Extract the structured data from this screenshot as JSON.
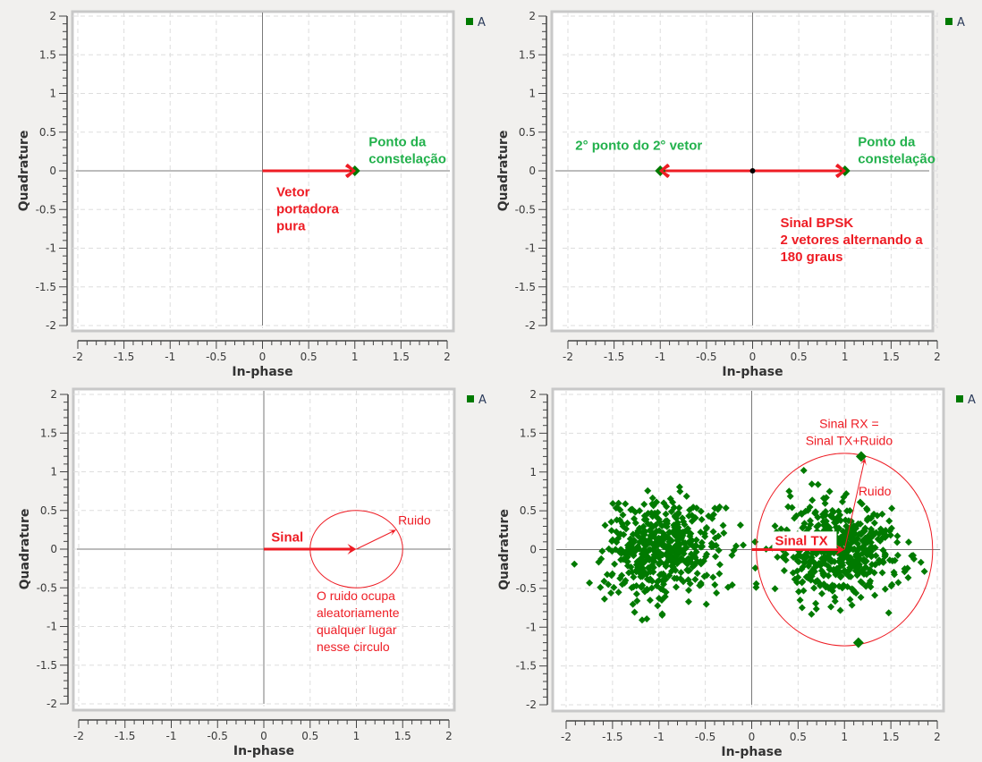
{
  "colors": {
    "background": "#f1f0ee",
    "plot_bg": "#ffffff",
    "grid": "#dddddd",
    "frame": "#c8c8c8",
    "axis_line": "#7a7a7a",
    "point": "#007a00",
    "vector": "#ee1c24",
    "label_green": "#22b14c",
    "label_red": "#ee1c24"
  },
  "chart_data": [
    {
      "id": "top-left",
      "type": "scatter",
      "title": "",
      "xlabel": "In-phase",
      "ylabel": "Quadrature",
      "xlim": [
        -2,
        2
      ],
      "ylim": [
        -2,
        2
      ],
      "xticks": [
        "-2",
        "-1.5",
        "-1",
        "-0.5",
        "0",
        "0.5",
        "1",
        "1.5",
        "2"
      ],
      "yticks": [
        "2",
        "1.5",
        "1",
        "0.5",
        "0",
        "-0.5",
        "-1",
        "-1.5",
        "-2"
      ],
      "grid": true,
      "legend": {
        "position": "top-right",
        "entries": [
          "A"
        ]
      },
      "points": [
        [
          1,
          0
        ]
      ],
      "vectors": [
        {
          "from": [
            0,
            0
          ],
          "to": [
            1,
            0
          ]
        }
      ],
      "annotations": [
        {
          "text": [
            "Ponto da",
            "constelação"
          ],
          "color": "green",
          "at": [
            1.15,
            0.32
          ]
        },
        {
          "text": [
            "Vetor",
            "portadora",
            "pura"
          ],
          "color": "red",
          "at": [
            0.15,
            -0.33
          ]
        }
      ]
    },
    {
      "id": "top-right",
      "type": "scatter",
      "title": "",
      "xlabel": "In-phase",
      "ylabel": "Quadrature",
      "xlim": [
        -2,
        2
      ],
      "ylim": [
        -2,
        2
      ],
      "xticks": [
        "-2",
        "-1.5",
        "-1",
        "-0.5",
        "0",
        "0.5",
        "1",
        "1.5",
        "2"
      ],
      "yticks": [
        "2",
        "1.5",
        "1",
        "0.5",
        "0",
        "-0.5",
        "-1",
        "-1.5",
        "-2"
      ],
      "grid": true,
      "legend": {
        "position": "top-right",
        "entries": [
          "A"
        ]
      },
      "points": [
        [
          1,
          0
        ],
        [
          -1,
          0
        ]
      ],
      "origin_dot": true,
      "vectors": [
        {
          "from": [
            0,
            0
          ],
          "to": [
            1,
            0
          ]
        },
        {
          "from": [
            0,
            0
          ],
          "to": [
            -1,
            0
          ]
        }
      ],
      "annotations": [
        {
          "text": [
            "2° ponto do 2° vetor"
          ],
          "color": "green",
          "at": [
            -1.92,
            0.27
          ]
        },
        {
          "text": [
            "Ponto da",
            "constelação"
          ],
          "color": "green",
          "at": [
            1.14,
            0.32
          ]
        },
        {
          "text": [
            "Sinal BPSK",
            "2 vetores alternando a",
            "180 graus"
          ],
          "color": "red",
          "at": [
            0.3,
            -0.73
          ]
        }
      ]
    },
    {
      "id": "bottom-left",
      "type": "scatter",
      "title": "",
      "xlabel": "In-phase",
      "ylabel": "Quadrature",
      "xlim": [
        -2,
        2
      ],
      "ylim": [
        -2,
        2
      ],
      "xticks": [
        "-2",
        "-1.5",
        "-1",
        "-0.5",
        "0",
        "0.5",
        "1",
        "1.5",
        "2"
      ],
      "yticks": [
        "2",
        "1.5",
        "1",
        "0.5",
        "0",
        "-0.5",
        "-1",
        "-1.5",
        "-2"
      ],
      "grid": true,
      "legend": {
        "position": "top-right",
        "entries": [
          "A"
        ]
      },
      "points": [],
      "vectors": [
        {
          "from": [
            0,
            0
          ],
          "to": [
            1,
            0
          ],
          "weight": "bold"
        },
        {
          "from": [
            1,
            0
          ],
          "to": [
            1.43,
            0.25
          ],
          "weight": "thin"
        }
      ],
      "noise_circle": {
        "center": [
          1,
          0
        ],
        "radius_x": 0.5,
        "radius_y": 0.5
      },
      "annotations": [
        {
          "text": [
            "Sinal"
          ],
          "color": "red",
          "bold": true,
          "at": [
            0.08,
            0.1
          ]
        },
        {
          "text": [
            "Ruido"
          ],
          "color": "red",
          "bold": false,
          "at": [
            1.45,
            0.32
          ]
        },
        {
          "text": [
            "O ruido ocupa",
            "aleatoriamente",
            "qualquer lugar",
            "nesse circulo"
          ],
          "color": "red",
          "bold": false,
          "at": [
            0.57,
            -0.66
          ]
        }
      ]
    },
    {
      "id": "bottom-right",
      "type": "scatter",
      "title": "",
      "xlabel": "In-phase",
      "ylabel": "Quadrature",
      "xlim": [
        -2,
        2
      ],
      "ylim": [
        -2,
        2
      ],
      "xticks": [
        "-2",
        "-1.5",
        "-1",
        "-0.5",
        "0",
        "0.5",
        "1",
        "1.5",
        "2"
      ],
      "yticks": [
        "2",
        "1.5",
        "1",
        "0.5",
        "0",
        "-0.5",
        "-1",
        "-1.5",
        "-2"
      ],
      "grid": true,
      "legend": {
        "position": "top-right",
        "entries": [
          "A"
        ]
      },
      "clusters": [
        {
          "center": [
            -0.95,
            0.0
          ],
          "sigma": [
            0.32,
            0.32
          ],
          "count": 480,
          "seed": 7
        },
        {
          "center": [
            0.95,
            0.0
          ],
          "sigma": [
            0.32,
            0.32
          ],
          "count": 480,
          "seed": 19
        }
      ],
      "points": [
        [
          1.18,
          1.2
        ],
        [
          1.15,
          -1.2
        ]
      ],
      "vectors": [
        {
          "from": [
            0,
            0
          ],
          "to": [
            1,
            0
          ],
          "weight": "bold"
        },
        {
          "from": [
            1,
            0
          ],
          "to": [
            1.22,
            1.18
          ],
          "weight": "thin"
        }
      ],
      "noise_circle": {
        "center": [
          1,
          0
        ],
        "radius_x": 0.95,
        "radius_y": 1.24
      },
      "annotations": [
        {
          "text": [
            "Sinal RX =",
            "Sinal TX+Ruido"
          ],
          "color": "red",
          "bold": false,
          "align": "center",
          "at": [
            1.05,
            1.57
          ]
        },
        {
          "text": [
            "Ruido"
          ],
          "color": "red",
          "bold": false,
          "at": [
            1.15,
            0.7
          ]
        },
        {
          "text": [
            "Sinal TX"
          ],
          "color": "red",
          "bold": true,
          "boxed": true,
          "at": [
            0.25,
            0.06
          ]
        }
      ]
    }
  ]
}
